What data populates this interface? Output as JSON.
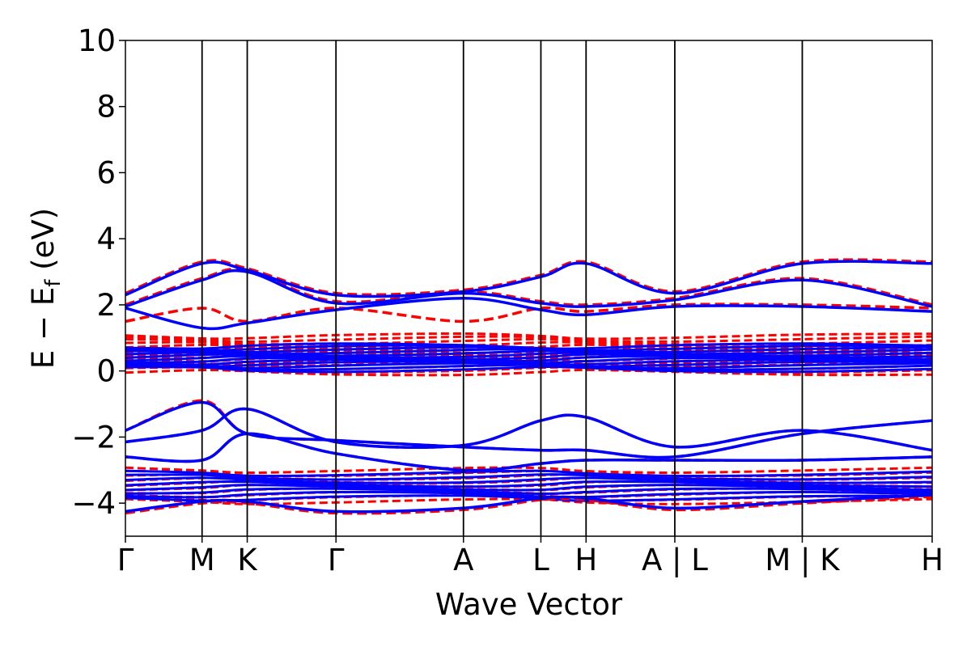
{
  "chart_data": {
    "type": "line",
    "xlabel": "Wave Vector",
    "ylabel_main": "E − E",
    "ylabel_sub": "f",
    "ylabel_unit": " (eV)",
    "ylim": [
      -5,
      10
    ],
    "yticks": [
      -4,
      -2,
      0,
      2,
      4,
      6,
      8,
      10
    ],
    "ytick_labels": [
      "−4",
      "−2",
      "0",
      "2",
      "4",
      "6",
      "8",
      "10"
    ],
    "xlim": [
      0,
      1
    ],
    "kpath": [
      {
        "label": "Γ",
        "x": 0.0
      },
      {
        "label": "M",
        "x": 0.095
      },
      {
        "label": "K",
        "x": 0.151
      },
      {
        "label": "Γ",
        "x": 0.261
      },
      {
        "label": "A",
        "x": 0.419
      },
      {
        "label": "L",
        "x": 0.515
      },
      {
        "label": "H",
        "x": 0.571
      },
      {
        "label": "A | L",
        "x": 0.681
      },
      {
        "label": "M | K",
        "x": 0.839
      },
      {
        "label": "H",
        "x": 1.0
      }
    ],
    "legend": "none",
    "series": [
      {
        "style": "spin-down",
        "color": "#ff0000",
        "dash": true,
        "x": [
          0.0,
          0.095,
          0.151,
          0.261,
          0.419,
          0.515,
          0.571,
          0.681,
          0.839,
          1.0
        ],
        "y": [
          2.35,
          3.3,
          3.1,
          2.35,
          2.45,
          2.9,
          3.3,
          2.4,
          3.3,
          3.3
        ]
      },
      {
        "style": "spin-down",
        "color": "#ff0000",
        "dash": true,
        "x": [
          0.0,
          0.095,
          0.151,
          0.261,
          0.419,
          0.515,
          0.571,
          0.681,
          0.839,
          1.0
        ],
        "y": [
          2.0,
          2.8,
          3.05,
          2.1,
          2.4,
          2.1,
          2.0,
          2.2,
          2.8,
          2.0
        ]
      },
      {
        "style": "spin-down",
        "color": "#ff0000",
        "dash": true,
        "x": [
          0.0,
          0.095,
          0.151,
          0.261,
          0.419,
          0.515,
          0.571,
          0.681,
          0.839,
          1.0
        ],
        "y": [
          1.5,
          1.9,
          1.5,
          1.9,
          1.5,
          1.9,
          1.8,
          2.0,
          2.0,
          1.9
        ]
      },
      {
        "style": "spin-down",
        "color": "#ff0000",
        "dash": true,
        "x": [
          0.0,
          0.095,
          0.151,
          0.261,
          0.419,
          0.515,
          0.571,
          0.681,
          0.839,
          1.0
        ],
        "y": [
          -1.8,
          -0.9,
          -1.9,
          -2.1,
          -2.3,
          -2.4,
          -2.4,
          -2.6,
          -1.9,
          -1.5
        ]
      },
      {
        "style": "spin-down",
        "color": "#ff0000",
        "dash": true,
        "x": [
          0.0,
          0.095,
          0.151,
          0.261,
          0.419,
          0.515,
          0.571,
          0.681,
          0.839,
          1.0
        ],
        "y": [
          -2.15,
          -1.8,
          -1.15,
          -2.15,
          -2.25,
          -1.5,
          -1.4,
          -2.3,
          -1.8,
          -2.4
        ]
      },
      {
        "style": "spin-down",
        "color": "#ff0000",
        "dash": true,
        "x": [
          0.0,
          0.095,
          0.151,
          0.261,
          0.419,
          0.515,
          0.571,
          0.681,
          0.839,
          1.0
        ],
        "y": [
          -2.6,
          -2.7,
          -1.9,
          -2.5,
          -3.0,
          -2.8,
          -2.7,
          -2.7,
          -2.7,
          -2.6
        ]
      },
      {
        "style": "spin-down",
        "color": "#ff0000",
        "dash": true,
        "x": [
          0.0,
          0.095,
          0.151,
          0.261,
          0.419,
          0.515,
          0.571,
          0.681,
          0.839,
          1.0
        ],
        "y": [
          -4.3,
          -4.0,
          -4.0,
          -4.3,
          -4.2,
          -3.9,
          -3.9,
          -4.2,
          -4.0,
          -3.8
        ]
      },
      {
        "style": "spin-up",
        "color": "#0000ff",
        "dash": false,
        "x": [
          0.0,
          0.095,
          0.151,
          0.261,
          0.419,
          0.515,
          0.571,
          0.681,
          0.839,
          1.0
        ],
        "y": [
          2.3,
          3.25,
          3.05,
          2.3,
          2.4,
          2.85,
          3.25,
          2.35,
          3.25,
          3.25
        ]
      },
      {
        "style": "spin-up",
        "color": "#0000ff",
        "dash": false,
        "x": [
          0.0,
          0.095,
          0.151,
          0.261,
          0.419,
          0.515,
          0.571,
          0.681,
          0.839,
          1.0
        ],
        "y": [
          1.95,
          2.75,
          3.0,
          2.05,
          2.35,
          2.05,
          1.95,
          2.15,
          2.75,
          1.95
        ]
      },
      {
        "style": "spin-up",
        "color": "#0000ff",
        "dash": false,
        "x": [
          0.0,
          0.095,
          0.151,
          0.261,
          0.419,
          0.515,
          0.571,
          0.681,
          0.839,
          1.0
        ],
        "y": [
          1.9,
          1.3,
          1.45,
          1.85,
          2.2,
          1.85,
          1.7,
          1.95,
          1.95,
          1.8
        ]
      },
      {
        "style": "spin-up",
        "color": "#0000ff",
        "dash": false,
        "x": [
          0.0,
          0.095,
          0.151,
          0.261,
          0.419,
          0.515,
          0.571,
          0.681,
          0.839,
          1.0
        ],
        "y": [
          -1.8,
          -0.95,
          -1.9,
          -2.1,
          -2.3,
          -2.4,
          -2.4,
          -2.6,
          -1.9,
          -1.5
        ]
      },
      {
        "style": "spin-up",
        "color": "#0000ff",
        "dash": false,
        "x": [
          0.0,
          0.095,
          0.151,
          0.261,
          0.419,
          0.515,
          0.571,
          0.681,
          0.839,
          1.0
        ],
        "y": [
          -2.15,
          -1.8,
          -1.15,
          -2.15,
          -2.25,
          -1.5,
          -1.4,
          -2.3,
          -1.8,
          -2.4
        ]
      },
      {
        "style": "spin-up",
        "color": "#0000ff",
        "dash": false,
        "x": [
          0.0,
          0.095,
          0.151,
          0.261,
          0.419,
          0.515,
          0.571,
          0.681,
          0.839,
          1.0
        ],
        "y": [
          -2.6,
          -2.7,
          -1.9,
          -2.5,
          -3.0,
          -2.8,
          -2.7,
          -2.7,
          -2.7,
          -2.6
        ]
      },
      {
        "style": "spin-up",
        "color": "#0000ff",
        "dash": false,
        "x": [
          0.0,
          0.095,
          0.151,
          0.261,
          0.419,
          0.515,
          0.571,
          0.681,
          0.839,
          1.0
        ],
        "y": [
          -4.25,
          -3.95,
          -3.95,
          -4.25,
          -4.15,
          -3.85,
          -3.85,
          -4.15,
          -3.95,
          -3.75
        ]
      }
    ],
    "dense_bands": [
      {
        "color": "#ff0000",
        "dash": true,
        "range": [
          -0.05,
          1.05
        ],
        "count": 14
      },
      {
        "color": "#0000ff",
        "dash": false,
        "range": [
          0.05,
          0.75
        ],
        "count": 14
      },
      {
        "color": "#ff0000",
        "dash": true,
        "range": [
          -3.95,
          -3.0
        ],
        "count": 10
      },
      {
        "color": "#0000ff",
        "dash": false,
        "range": [
          -3.85,
          -3.1
        ],
        "count": 8
      }
    ]
  }
}
